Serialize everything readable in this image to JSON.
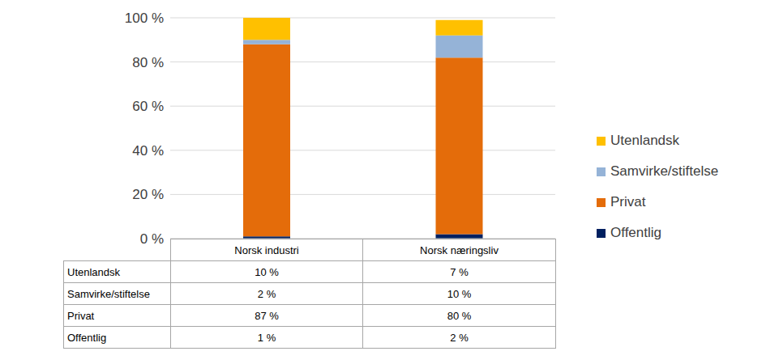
{
  "chart_data": {
    "type": "bar",
    "stacked": true,
    "grid": true,
    "legend": "right",
    "tick_labels": "y",
    "categories": [
      "Norsk industri",
      "Norsk næringsliv"
    ],
    "ylim": [
      0,
      100
    ],
    "yticks": [
      {
        "value": 0,
        "label": "0 %"
      },
      {
        "value": 20,
        "label": "20 %"
      },
      {
        "value": 40,
        "label": "40 %"
      },
      {
        "value": 60,
        "label": "60 %"
      },
      {
        "value": 80,
        "label": "80 %"
      },
      {
        "value": 100,
        "label": "100 %"
      }
    ],
    "series": [
      {
        "name": "Offentlig",
        "color": "#002060",
        "values": [
          1,
          2
        ],
        "value_labels": [
          "1 %",
          "2 %"
        ]
      },
      {
        "name": "Privat",
        "color": "#E46C0A",
        "values": [
          87,
          80
        ],
        "value_labels": [
          "87 %",
          "80 %"
        ]
      },
      {
        "name": "Samvirke/stiftelse",
        "color": "#95B3D7",
        "values": [
          2,
          10
        ],
        "value_labels": [
          "2 %",
          "10 %"
        ]
      },
      {
        "name": "Utenlandsk",
        "color": "#FFC000",
        "values": [
          10,
          7
        ],
        "value_labels": [
          "10 %",
          "7 %"
        ]
      }
    ]
  }
}
